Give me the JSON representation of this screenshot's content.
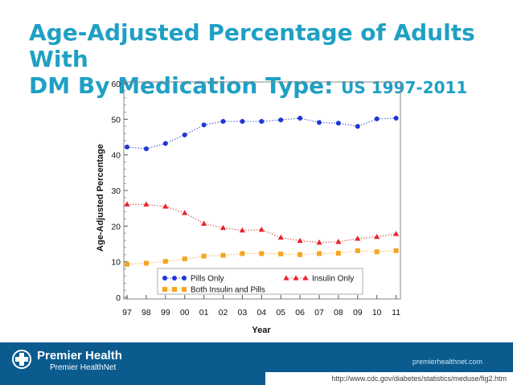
{
  "slide": {
    "title_line1": "Age-Adjusted Percentage of Adults With",
    "title_line2": "DM By Medication Type:",
    "title_suffix": "US 1997-2011"
  },
  "chart_data": {
    "type": "line",
    "xlabel": "Year",
    "ylabel": "Age-Adjusted Percentage",
    "ylim": [
      0,
      60
    ],
    "yticks": [
      0,
      10,
      20,
      30,
      40,
      50,
      60
    ],
    "categories": [
      "97",
      "98",
      "99",
      "00",
      "01",
      "02",
      "03",
      "04",
      "05",
      "06",
      "07",
      "08",
      "09",
      "10",
      "11"
    ],
    "grid": false,
    "series": [
      {
        "name": "Pills Only",
        "color": "#1f35d6",
        "marker": "circle",
        "values": [
          42.2,
          41.7,
          43.2,
          45.6,
          48.4,
          49.4,
          49.4,
          49.4,
          49.8,
          50.3,
          49.1,
          48.9,
          48.0,
          50.1,
          50.3
        ]
      },
      {
        "name": "Insulin Only",
        "color": "#e8242a",
        "marker": "triangle",
        "values": [
          26.1,
          26.1,
          25.5,
          23.7,
          20.7,
          19.5,
          18.8,
          19.0,
          16.8,
          15.9,
          15.4,
          15.6,
          16.5,
          17.0,
          17.8
        ]
      },
      {
        "name": "Both Insulin and Pills",
        "color": "#f5a623",
        "marker": "square",
        "values": [
          9.3,
          9.6,
          10.1,
          10.8,
          11.6,
          11.8,
          12.3,
          12.3,
          12.2,
          12.0,
          12.3,
          12.4,
          13.1,
          12.8,
          13.1
        ]
      }
    ]
  },
  "footer": {
    "brand_name": "Premier Health",
    "brand_sub": "Premier HealthNet",
    "site_url": "premierhealthnet.com",
    "source_url": "http://www.cdc.gov/diabetes/statistics/meduse/fig2.htm"
  },
  "colors": {
    "title": "#1fa0c4",
    "footer_bg": "#0b5b8e"
  }
}
